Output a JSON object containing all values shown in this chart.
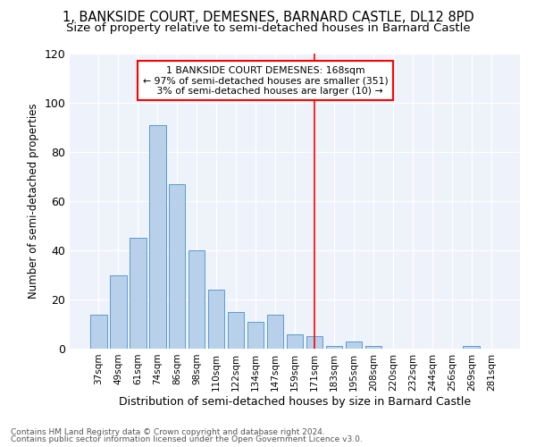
{
  "title": "1, BANKSIDE COURT, DEMESNES, BARNARD CASTLE, DL12 8PD",
  "subtitle": "Size of property relative to semi-detached houses in Barnard Castle",
  "xlabel": "Distribution of semi-detached houses by size in Barnard Castle",
  "ylabel": "Number of semi-detached properties",
  "categories": [
    "37sqm",
    "49sqm",
    "61sqm",
    "74sqm",
    "86sqm",
    "98sqm",
    "110sqm",
    "122sqm",
    "134sqm",
    "147sqm",
    "159sqm",
    "171sqm",
    "183sqm",
    "195sqm",
    "208sqm",
    "220sqm",
    "232sqm",
    "244sqm",
    "256sqm",
    "269sqm",
    "281sqm"
  ],
  "values": [
    14,
    30,
    45,
    91,
    67,
    40,
    24,
    15,
    11,
    14,
    6,
    5,
    1,
    3,
    1,
    0,
    0,
    0,
    0,
    1,
    0
  ],
  "bar_color": "#b8d0ea",
  "bar_edge_color": "#5b9bd5",
  "vline_x_index": 11,
  "vline_color": "red",
  "ylim": [
    0,
    120
  ],
  "yticks": [
    0,
    20,
    40,
    60,
    80,
    100,
    120
  ],
  "footnote1": "Contains HM Land Registry data © Crown copyright and database right 2024.",
  "footnote2": "Contains public sector information licensed under the Open Government Licence v3.0.",
  "bg_color": "#eef2fb",
  "title_fontsize": 10.5,
  "subtitle_fontsize": 9.5,
  "pct_smaller": 97,
  "n_smaller": 351,
  "pct_larger": 3,
  "n_larger": 10,
  "property_label": "1 BANKSIDE COURT DEMESNES: 168sqm"
}
